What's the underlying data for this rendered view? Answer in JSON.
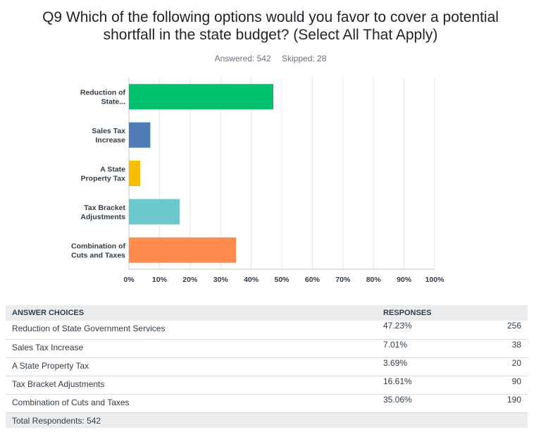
{
  "question": {
    "title_line1": "Q9 Which of the following options would you favor to cover a potential",
    "title_line2": "shortfall in the state budget? (Select All That Apply)",
    "answered": "Answered: 542",
    "skipped": "Skipped: 28"
  },
  "chart_data": {
    "type": "bar",
    "orientation": "horizontal",
    "categories": [
      [
        "Reduction of",
        "State..."
      ],
      [
        "Sales Tax",
        "Increase"
      ],
      [
        "A State",
        "Property Tax"
      ],
      [
        "Tax Bracket",
        "Adjustments"
      ],
      [
        "Combination of",
        "Cuts and Taxes"
      ]
    ],
    "values": [
      47.23,
      7.01,
      3.69,
      16.61,
      35.06
    ],
    "colors": [
      "#00bf6f",
      "#507cb6",
      "#f9be00",
      "#6bc8cd",
      "#ff8b4f"
    ],
    "xlim": [
      0,
      100
    ],
    "xticks": [
      "0%",
      "10%",
      "20%",
      "30%",
      "40%",
      "50%",
      "60%",
      "70%",
      "80%",
      "90%",
      "100%"
    ],
    "grid": true
  },
  "table": {
    "headers": [
      "ANSWER CHOICES",
      "RESPONSES"
    ],
    "rows": [
      {
        "choice": "Reduction of State Government Services",
        "percent": "47.23%",
        "count": "256"
      },
      {
        "choice": "Sales Tax Increase",
        "percent": "7.01%",
        "count": "38"
      },
      {
        "choice": "A State Property Tax",
        "percent": "3.69%",
        "count": "20"
      },
      {
        "choice": "Tax Bracket Adjustments",
        "percent": "16.61%",
        "count": "90"
      },
      {
        "choice": "Combination of Cuts and Taxes",
        "percent": "35.06%",
        "count": "190"
      }
    ],
    "total": "Total Respondents: 542"
  }
}
